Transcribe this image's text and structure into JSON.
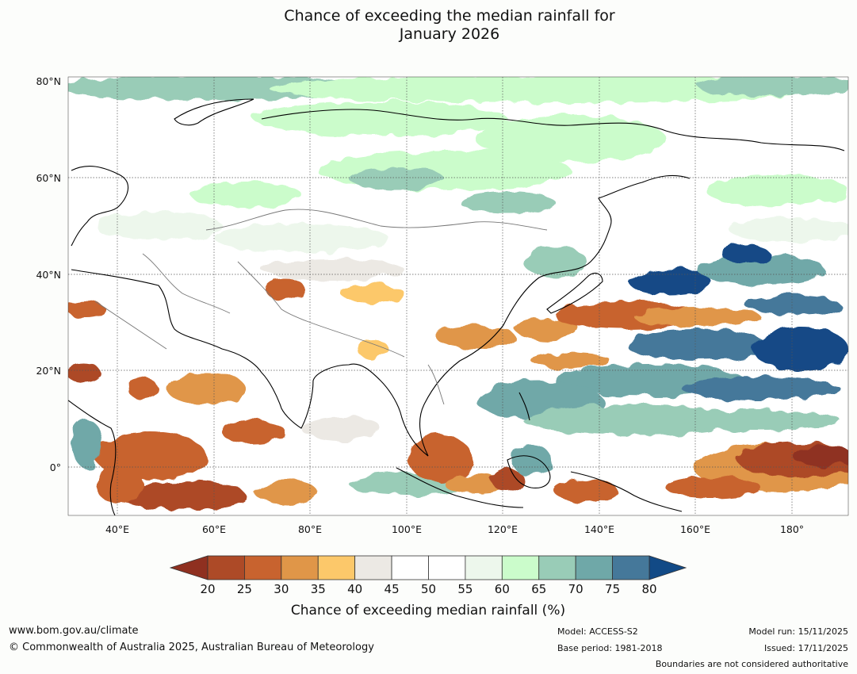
{
  "title": {
    "line1": "Chance of exceeding the median rainfall for",
    "line2": "January 2026"
  },
  "axes": {
    "lat_labels": [
      "80°N",
      "60°N",
      "40°N",
      "20°N",
      "0°"
    ],
    "lon_labels": [
      "40°E",
      "60°E",
      "80°E",
      "100°E",
      "120°E",
      "140°E",
      "160°E",
      "180°"
    ]
  },
  "colorbar": {
    "ticks": [
      "20",
      "25",
      "30",
      "35",
      "40",
      "45",
      "50",
      "55",
      "60",
      "65",
      "70",
      "75",
      "80"
    ],
    "colors": [
      "#ad4a27",
      "#c8632f",
      "#e09648",
      "#fcc86a",
      "#ece9e4",
      "#ffffff",
      "#ffffff",
      "#edf7ec",
      "#cbfccb",
      "#99ccb7",
      "#6fa8a8",
      "#45789a"
    ],
    "low_color": "#8f3020",
    "high_color": "#124a86",
    "title": "Chance of exceeding median rainfall (%)"
  },
  "footer": {
    "url": "www.bom.gov.au/climate",
    "copyright": "© Commonwealth of Australia 2025, Australian Bureau of Meteorology",
    "model": "Model: ACCESS-S2",
    "base_period": "Base period: 1981-2018",
    "model_run": "Model run: 15/11/2025",
    "issued": "Issued: 17/11/2025",
    "boundaries": "Boundaries are not considered authoritative"
  }
}
